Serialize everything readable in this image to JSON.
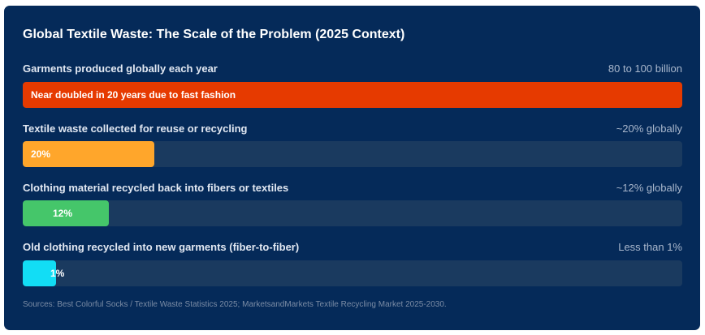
{
  "chart_data": {
    "type": "bar",
    "title": "Global Textile Waste: The Scale of the Problem (2025 Context)",
    "rows": [
      {
        "label": "Garments produced globally each year",
        "value_text": "80 to 100 billion",
        "bar_text": "Near doubled in 20 years due to fast fashion",
        "fill_fraction": 1.0,
        "color": "#e63a00"
      },
      {
        "label": "Textile waste collected for reuse or recycling",
        "value_text": "~20% globally",
        "bar_text": "20%",
        "fill_fraction": 0.2,
        "color": "#ffa62b"
      },
      {
        "label": "Clothing material recycled back into fibers or textiles",
        "value_text": "~12% globally",
        "bar_text": "12%",
        "fill_fraction": 0.13,
        "color": "#45c66a"
      },
      {
        "label": "Old clothing recycled into new garments (fiber-to-fiber)",
        "value_text": "Less than 1%",
        "bar_text": "1%",
        "fill_fraction": 0.05,
        "color": "#12ddf5"
      }
    ],
    "sources": "Sources: Best Colorful Socks / Textile Waste Statistics 2025; MarketsandMarkets Textile Recycling Market 2025-2030."
  }
}
